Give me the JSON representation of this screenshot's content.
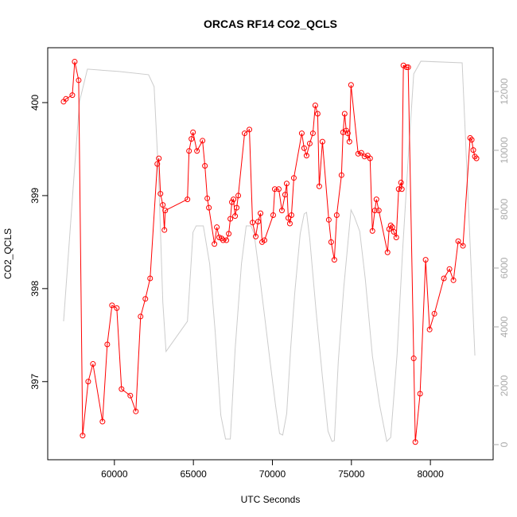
{
  "chart_data": {
    "type": "line",
    "title": "ORCAS RF14 CO2_QCLS",
    "xlabel": "UTC Seconds",
    "ylabel": "CO2_QCLS",
    "xlim": [
      55780,
      83970
    ],
    "ylim": [
      396.16,
      400.59
    ],
    "y2lim": [
      -514,
      13486
    ],
    "xticks": [
      60000,
      65000,
      70000,
      75000,
      80000
    ],
    "yticks": [
      397,
      398,
      399,
      400
    ],
    "y2ticks": [
      0,
      2000,
      4000,
      6000,
      8000,
      10000,
      12000
    ],
    "series": [
      {
        "color": "#ff0000",
        "marker": "circle",
        "x": [
          56784,
          56935,
          57337,
          57488,
          57739,
          57990,
          58342,
          58643,
          59246,
          59548,
          59849,
          60151,
          60452,
          61005,
          61357,
          61658,
          61960,
          62261,
          62714,
          62814,
          62915,
          63065,
          63166,
          63216,
          64623,
          64724,
          64874,
          64975,
          65226,
          65578,
          65729,
          65879,
          65980,
          66332,
          66482,
          66633,
          66784,
          66884,
          67085,
          67236,
          67337,
          67437,
          67538,
          67638,
          67739,
          67839,
          68241,
          68543,
          68744,
          68945,
          69095,
          69246,
          69347,
          69497,
          70050,
          70151,
          70402,
          70603,
          70804,
          70905,
          71005,
          71106,
          71206,
          71357,
          71859,
          72010,
          72161,
          72362,
          72563,
          72713,
          72864,
          72965,
          73166,
          73568,
          73719,
          73920,
          74070,
          74372,
          74472,
          74573,
          74673,
          74774,
          74874,
          74975,
          75427,
          75628,
          75829,
          76030,
          76181,
          76331,
          76482,
          76583,
          76733,
          77286,
          77387,
          77487,
          77588,
          77688,
          77839,
          77990,
          78140,
          78191,
          78291,
          78492,
          78593,
          78944,
          79045,
          79346,
          79698,
          79949,
          80251,
          80854,
          81206,
          81457,
          81759,
          82060,
          82513,
          82614,
          82714,
          82815,
          82915
        ],
        "values": [
          400.01,
          400.04,
          400.08,
          400.44,
          400.24,
          396.42,
          397.0,
          397.19,
          396.57,
          397.4,
          397.82,
          397.79,
          396.92,
          396.85,
          396.68,
          397.7,
          397.89,
          398.11,
          399.34,
          399.4,
          399.02,
          398.9,
          398.63,
          398.84,
          398.96,
          399.48,
          399.61,
          399.68,
          399.48,
          399.59,
          399.32,
          398.97,
          398.87,
          398.48,
          398.66,
          398.55,
          398.54,
          398.52,
          398.52,
          398.59,
          398.75,
          398.93,
          398.96,
          398.78,
          398.87,
          399.0,
          399.67,
          399.71,
          398.71,
          398.56,
          398.72,
          398.81,
          398.5,
          398.52,
          398.79,
          399.07,
          399.07,
          398.84,
          399.01,
          399.13,
          398.76,
          398.7,
          398.79,
          399.19,
          399.67,
          399.51,
          399.43,
          399.56,
          399.67,
          399.97,
          399.88,
          399.1,
          399.58,
          398.74,
          398.5,
          398.31,
          398.79,
          399.22,
          399.68,
          399.88,
          399.7,
          399.67,
          399.58,
          400.19,
          399.45,
          399.46,
          399.42,
          399.43,
          399.4,
          398.62,
          398.84,
          398.96,
          398.84,
          398.39,
          398.64,
          398.68,
          398.66,
          398.61,
          398.55,
          399.07,
          399.14,
          399.07,
          400.4,
          400.38,
          400.38,
          397.25,
          396.35,
          396.87,
          398.31,
          397.56,
          397.73,
          398.11,
          398.21,
          398.09,
          398.51,
          398.46,
          399.62,
          399.6,
          399.49,
          399.42,
          399.4
        ]
      },
      {
        "color": "#cccccc",
        "axis": "y2",
        "x": [
          56784,
          57387,
          57789,
          58291,
          60302,
          62161,
          62513,
          62814,
          63065,
          63267,
          64623,
          64975,
          65176,
          65628,
          66030,
          66382,
          66734,
          67035,
          67337,
          67638,
          68040,
          68342,
          68643,
          68844,
          69146,
          69497,
          69849,
          70201,
          70452,
          70653,
          70905,
          71156,
          71407,
          71759,
          72010,
          72161,
          72362,
          72764,
          73166,
          73518,
          73769,
          73920,
          74171,
          74523,
          74975,
          75176,
          75528,
          75879,
          76331,
          76784,
          77236,
          77487,
          77889,
          78241,
          78593,
          78944,
          79397,
          82010,
          82463,
          82815
        ],
        "values": [
          4190,
          8704,
          11650,
          12758,
          12677,
          12569,
          12164,
          8893,
          4838,
          3163,
          4190,
          7217,
          7433,
          7433,
          6136,
          3811,
          1000,
          189,
          189,
          3217,
          6136,
          7433,
          7433,
          7163,
          5920,
          4406,
          2838,
          1324,
          378,
          324,
          1054,
          3271,
          5109,
          7163,
          7839,
          7893,
          7001,
          4541,
          2298,
          460,
          108,
          135,
          2838,
          5379,
          7974,
          7758,
          7244,
          5622,
          3000,
          1352,
          108,
          243,
          3054,
          6595,
          9704,
          12596,
          13028,
          12974,
          7433,
          3027
        ]
      }
    ]
  }
}
